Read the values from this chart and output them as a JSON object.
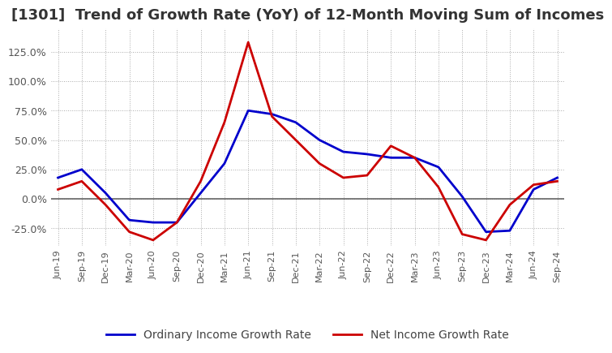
{
  "title": "[1301]  Trend of Growth Rate (YoY) of 12-Month Moving Sum of Incomes",
  "title_fontsize": 13,
  "title_color": "#333333",
  "background_color": "#ffffff",
  "grid_color": "#aaaaaa",
  "ylim": [
    -40,
    145
  ],
  "yticks": [
    -25,
    0,
    25,
    50,
    75,
    100,
    125
  ],
  "x_labels": [
    "Jun-19",
    "Sep-19",
    "Dec-19",
    "Mar-20",
    "Jun-20",
    "Sep-20",
    "Dec-20",
    "Mar-21",
    "Jun-21",
    "Sep-21",
    "Dec-21",
    "Mar-22",
    "Jun-22",
    "Sep-22",
    "Dec-22",
    "Mar-23",
    "Jun-23",
    "Sep-23",
    "Dec-23",
    "Mar-24",
    "Jun-24",
    "Sep-24"
  ],
  "ordinary_income": [
    18,
    25,
    5,
    -18,
    -20,
    -20,
    5,
    30,
    75,
    72,
    65,
    50,
    40,
    38,
    35,
    35,
    27,
    2,
    -28,
    -27,
    8,
    18
  ],
  "net_income": [
    8,
    15,
    -5,
    -28,
    -35,
    -20,
    15,
    65,
    133,
    70,
    50,
    30,
    18,
    20,
    45,
    35,
    10,
    -30,
    -35,
    -5,
    12,
    15
  ],
  "ordinary_color": "#0000cc",
  "net_color": "#cc0000",
  "line_width": 2.0,
  "legend_labels": [
    "Ordinary Income Growth Rate",
    "Net Income Growth Rate"
  ],
  "legend_fontsize": 10,
  "zeroline_color": "#666666"
}
